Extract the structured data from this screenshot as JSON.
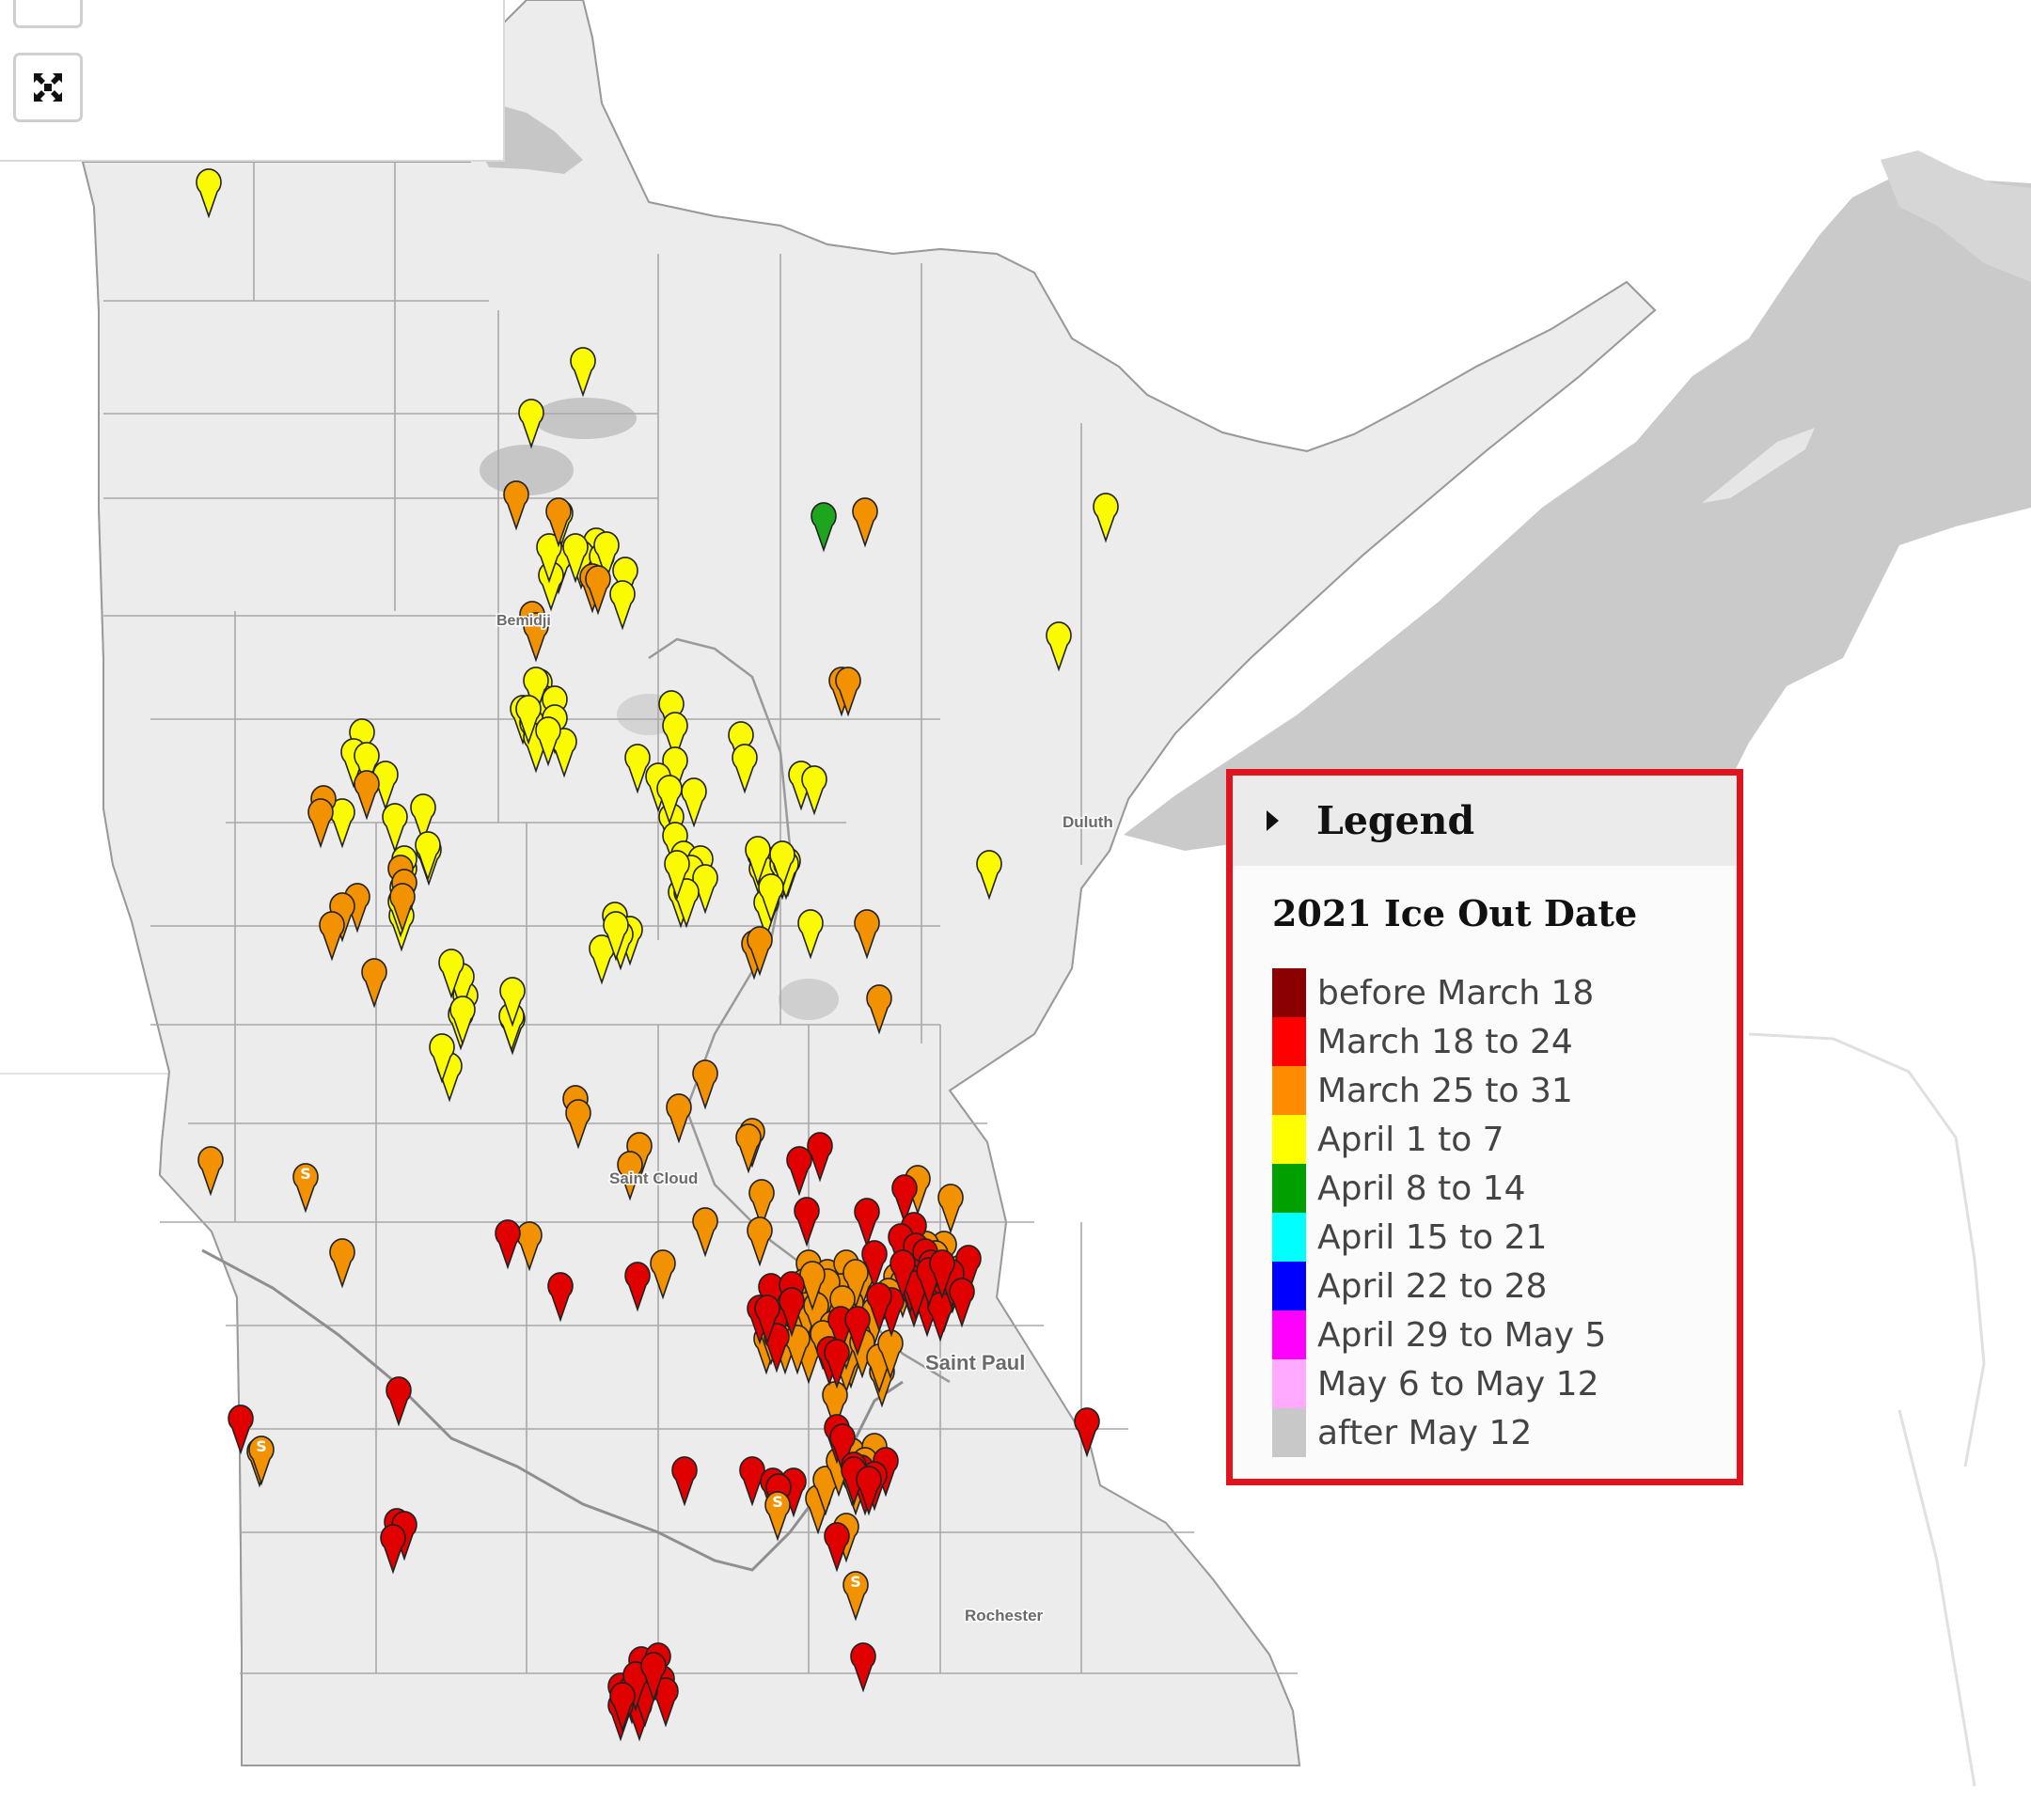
{
  "map": {
    "city_labels": [
      {
        "id": "bemidji",
        "text": "Bemidji"
      },
      {
        "id": "duluth",
        "text": "Duluth"
      },
      {
        "id": "st-cloud",
        "text": "Saint Cloud"
      },
      {
        "id": "st-paul",
        "text": "Saint Paul"
      },
      {
        "id": "rochester",
        "text": "Rochester"
      }
    ],
    "marker_colors": {
      "yellow": "#fafa00",
      "orange": "#f39200",
      "red": "#e00000",
      "green": "#1ea51e"
    },
    "marker_station_symbol": "S",
    "marker_counts": {
      "yellow": 88,
      "orange": 107,
      "red": 78,
      "green": 1
    }
  },
  "controls": {
    "fullscreen_icon": "expand-icon"
  },
  "legend": {
    "title": "Legend",
    "subtitle": "2021 Ice Out Date",
    "items": [
      {
        "label": "before March 18",
        "color": "#8b0000"
      },
      {
        "label": "March 18 to 24",
        "color": "#ff0000"
      },
      {
        "label": "March 25 to 31",
        "color": "#ff8c00"
      },
      {
        "label": "April 1 to 7",
        "color": "#ffff00"
      },
      {
        "label": "April 8 to 14",
        "color": "#00a000"
      },
      {
        "label": "April 15 to 21",
        "color": "#00ffff"
      },
      {
        "label": "April 22 to 28",
        "color": "#0000ff"
      },
      {
        "label": "April 29 to May 5",
        "color": "#ff00ff"
      },
      {
        "label": "May 6 to May 12",
        "color": "#ffaaff"
      },
      {
        "label": "after May 12",
        "color": "#c8c8c8"
      }
    ]
  }
}
